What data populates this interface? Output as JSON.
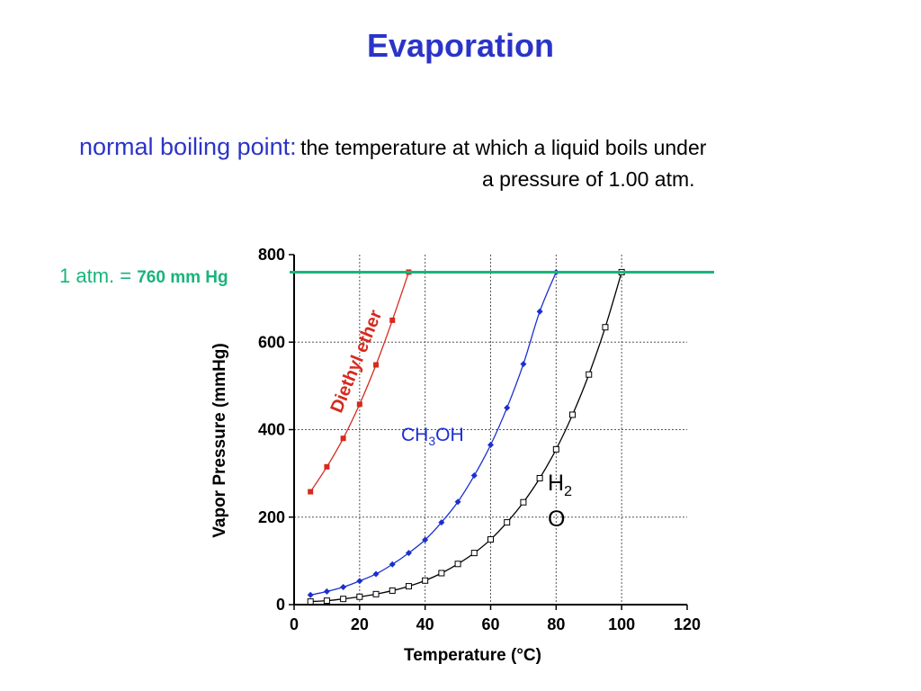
{
  "slide": {
    "title": "Evaporation",
    "definition_term": "normal boiling point:",
    "definition_text": "the temperature at which a liquid boils under",
    "definition_text_2": "a pressure of 1.00 atm.",
    "atm_label_a": "1 atm. = ",
    "atm_label_b": "760 mm Hg",
    "colors": {
      "title": "#2b34c8",
      "atm_line": "#19b47a"
    }
  },
  "chart_data": {
    "type": "line",
    "xlabel": "Temperature (°C)",
    "ylabel": "Vapor Pressure (mmHg)",
    "xlim": [
      0,
      120
    ],
    "ylim": [
      0,
      800
    ],
    "xticks": [
      0,
      20,
      40,
      60,
      80,
      100,
      120
    ],
    "yticks": [
      0,
      200,
      400,
      600,
      800
    ],
    "grid": true,
    "reference_line": {
      "y": 760,
      "color": "#19b47a"
    },
    "series": [
      {
        "name": "Diethyl ether",
        "color": "#d62a1e",
        "marker": "filled-square",
        "x": [
          5,
          10,
          15,
          20,
          25,
          30,
          35
        ],
        "y": [
          258,
          315,
          380,
          458,
          548,
          650,
          760
        ]
      },
      {
        "name": "CH3OH",
        "color": "#1b2fd1",
        "marker": "filled-diamond",
        "x": [
          5,
          10,
          15,
          20,
          25,
          30,
          35,
          40,
          45,
          50,
          55,
          60,
          65,
          70,
          75,
          80
        ],
        "y": [
          22,
          30,
          40,
          54,
          70,
          92,
          118,
          148,
          188,
          235,
          295,
          365,
          450,
          550,
          670,
          760
        ]
      },
      {
        "name": "H2O",
        "color": "#000000",
        "marker": "open-square",
        "x": [
          5,
          10,
          15,
          20,
          25,
          30,
          35,
          40,
          45,
          50,
          55,
          60,
          65,
          70,
          75,
          80,
          85,
          90,
          95,
          100
        ],
        "y": [
          7,
          9,
          13,
          18,
          24,
          32,
          42,
          55,
          72,
          93,
          118,
          149,
          188,
          234,
          289,
          355,
          434,
          526,
          634,
          760
        ]
      }
    ]
  }
}
